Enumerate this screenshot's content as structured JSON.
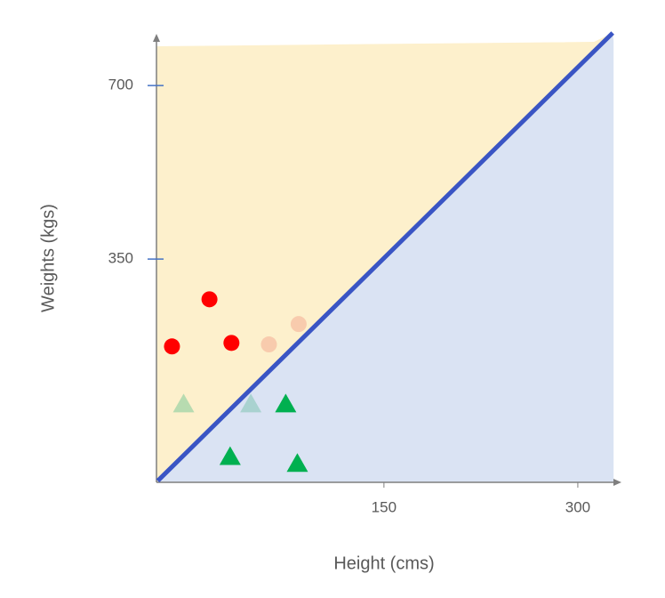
{
  "chart_data": {
    "type": "scatter",
    "x_label": "Height (cms)",
    "y_label": "Weights (kgs)",
    "xlim": [
      -26,
      331
    ],
    "ylim": [
      -100,
      797
    ],
    "xticks": [
      150,
      300
    ],
    "yticks": [
      350,
      700
    ],
    "fill_above": "#fdf0cc",
    "fill_below": "#dae3f3",
    "boundary": {
      "color": "#3a55c4",
      "x": [
        -25,
        327
      ],
      "y": [
        -97,
        806
      ]
    },
    "series": [
      {
        "marker": "circle",
        "color": "#ff0000",
        "x": [
          -14,
          15,
          32
        ],
        "values": [
          174,
          269,
          181
        ]
      },
      {
        "marker": "circle",
        "color": "#f8cbad",
        "x": [
          61,
          84
        ],
        "values": [
          178,
          219
        ]
      },
      {
        "marker": "triangle",
        "color": "#00b050",
        "x": [
          74,
          31,
          83
        ],
        "values": [
          59,
          -47,
          -61
        ]
      },
      {
        "marker": "triangle",
        "color": "#b7dbb0",
        "x": [
          -5
        ],
        "values": [
          59
        ]
      },
      {
        "marker": "triangle",
        "color": "#a9d2d0",
        "x": [
          47
        ],
        "values": [
          59
        ]
      }
    ]
  }
}
